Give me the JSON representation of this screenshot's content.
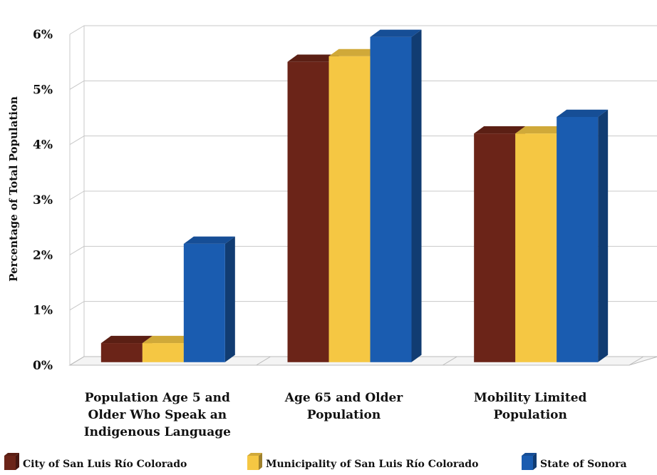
{
  "chart_data": {
    "type": "bar",
    "title": "",
    "ylabel": "Percentage of Total Population",
    "xlabel": "",
    "ylim": [
      0,
      6
    ],
    "y_ticks": [
      "0%",
      "1%",
      "2%",
      "3%",
      "4%",
      "5%",
      "6%"
    ],
    "grid": true,
    "legend_position": "bottom",
    "categories": [
      [
        "Population Age 5 and",
        "Older Who Speak an",
        "Indigenous Language"
      ],
      [
        "Age 65 and Older",
        "Population"
      ],
      [
        "Mobility Limited",
        "Population"
      ]
    ],
    "series": [
      {
        "name": "City of San Luis Río Colorado",
        "values": [
          0.4,
          5.5,
          4.2
        ],
        "color": "#6b2418"
      },
      {
        "name": "Municipality of San Luis Río Colorado",
        "values": [
          0.4,
          5.6,
          4.2
        ],
        "color": "#f5c743"
      },
      {
        "name": "State of Sonora",
        "values": [
          2.2,
          5.95,
          4.5
        ],
        "color": "#1a5cb0"
      }
    ]
  }
}
